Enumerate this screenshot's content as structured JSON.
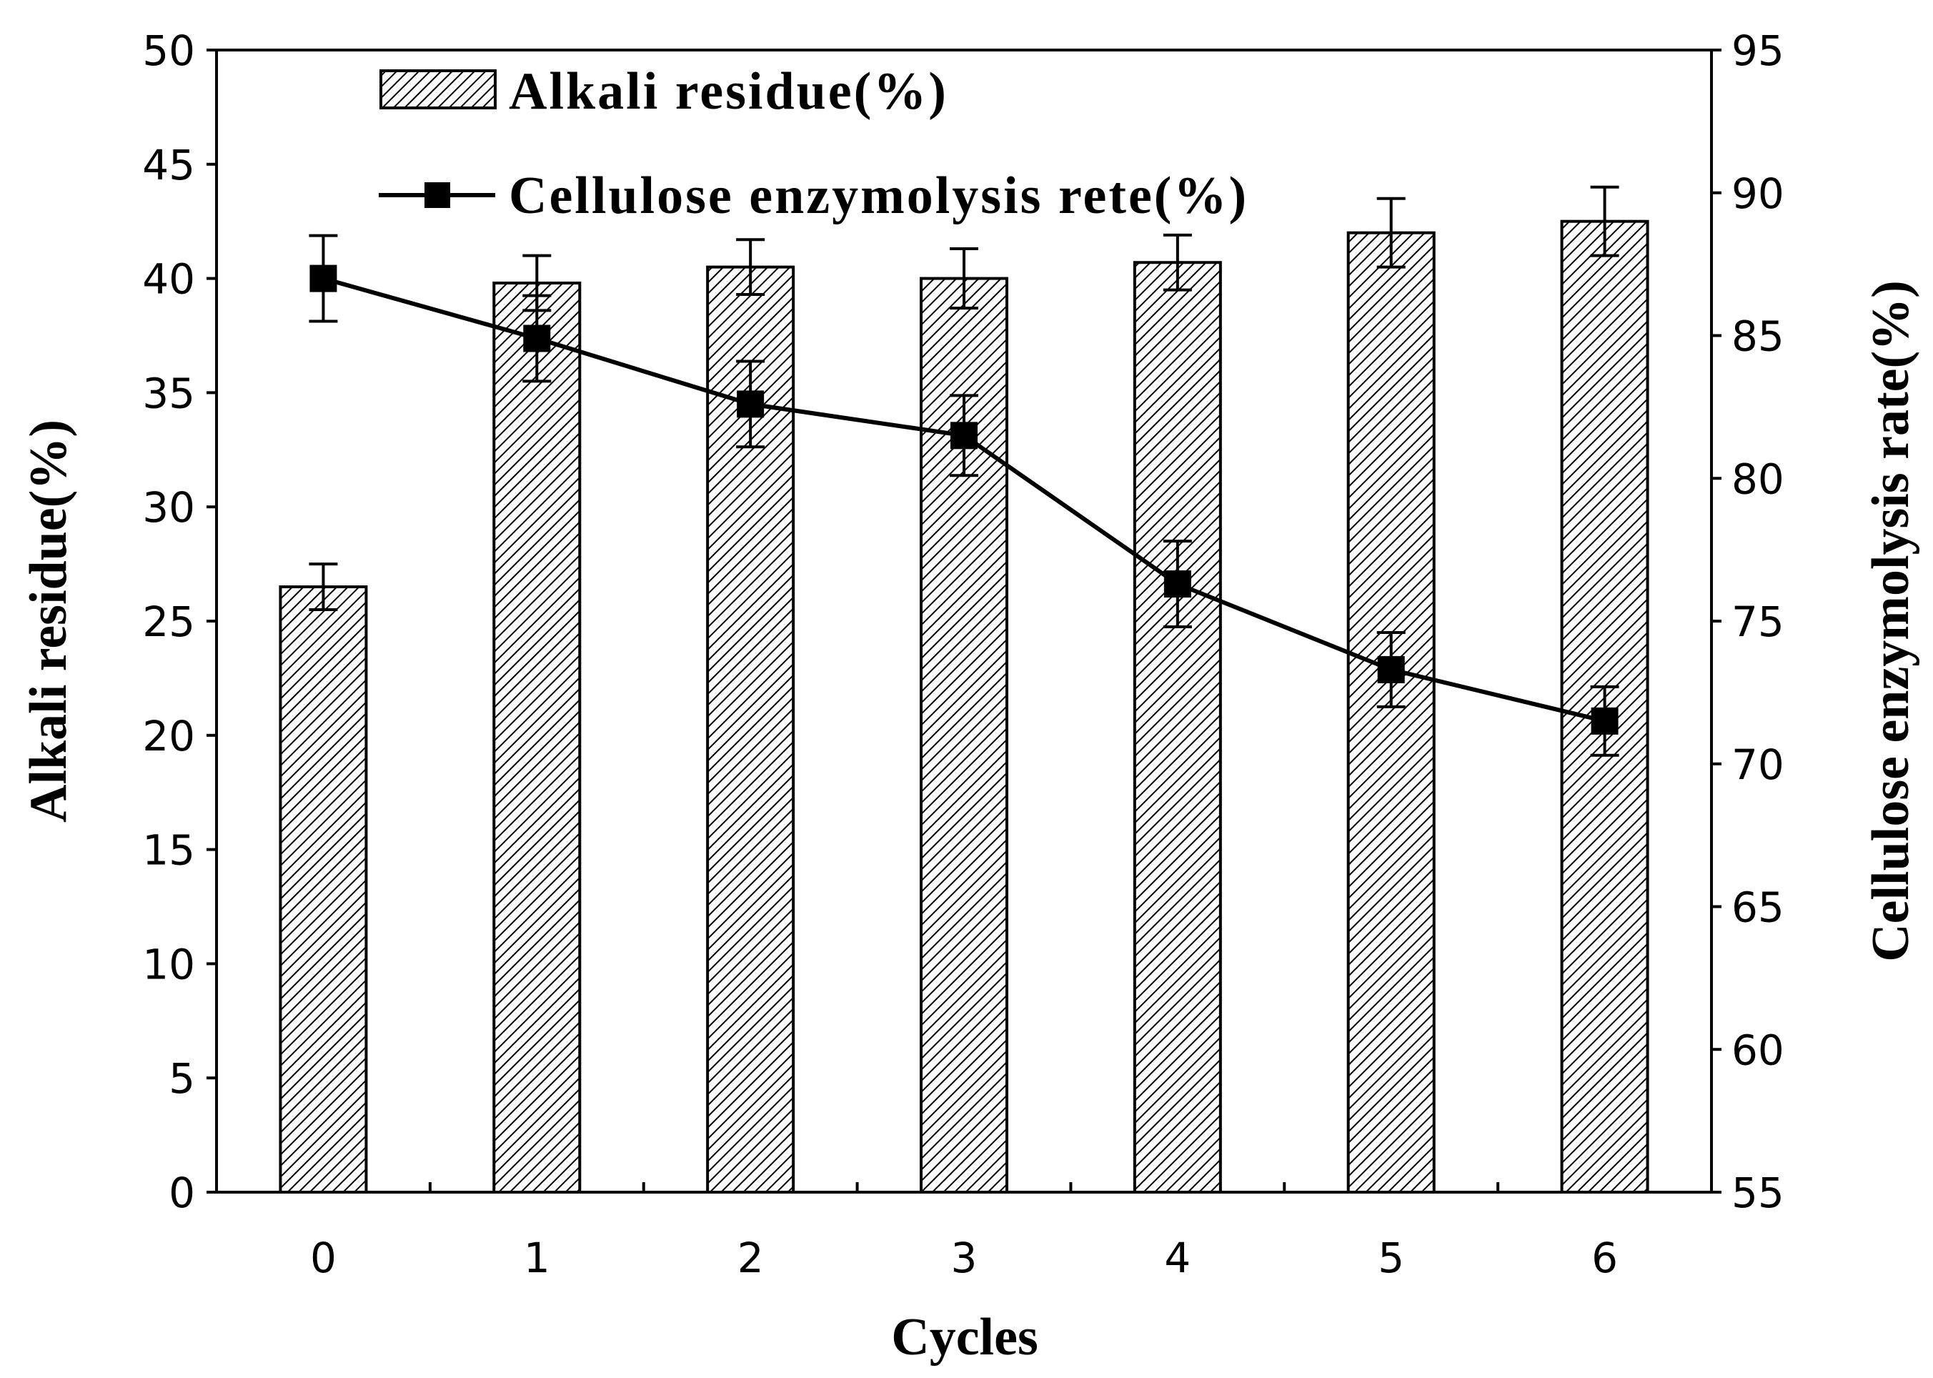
{
  "chart_data": {
    "type": "bar",
    "categories": [
      "0",
      "1",
      "2",
      "3",
      "4",
      "5",
      "6"
    ],
    "series": [
      {
        "name": "Alkali residue(%)",
        "type": "bar",
        "axis": "left",
        "values": [
          26.5,
          39.8,
          40.5,
          40.0,
          40.7,
          42.0,
          42.5
        ],
        "errors": [
          1.0,
          1.2,
          1.2,
          1.3,
          1.2,
          1.5,
          1.5
        ]
      },
      {
        "name": "Cellulose enzymolysis rete(%)",
        "type": "line",
        "axis": "right",
        "values": [
          87.0,
          84.9,
          82.6,
          81.5,
          76.3,
          73.3,
          71.5
        ],
        "errors": [
          1.5,
          1.5,
          1.5,
          1.4,
          1.5,
          1.3,
          1.2
        ]
      }
    ],
    "xlabel": "Cycles",
    "ylabel": "Alkali residue(%)",
    "y2label": "Cellulose enzymolysis rate(%)",
    "ylim": [
      0,
      50
    ],
    "y2lim": [
      55,
      95
    ],
    "yticks": [
      "0",
      "5",
      "10",
      "15",
      "20",
      "25",
      "30",
      "35",
      "40",
      "45",
      "50"
    ],
    "y2ticks": [
      "55",
      "60",
      "65",
      "70",
      "75",
      "80",
      "85",
      "90",
      "95"
    ],
    "legend_position": "top-left",
    "grid": false
  }
}
